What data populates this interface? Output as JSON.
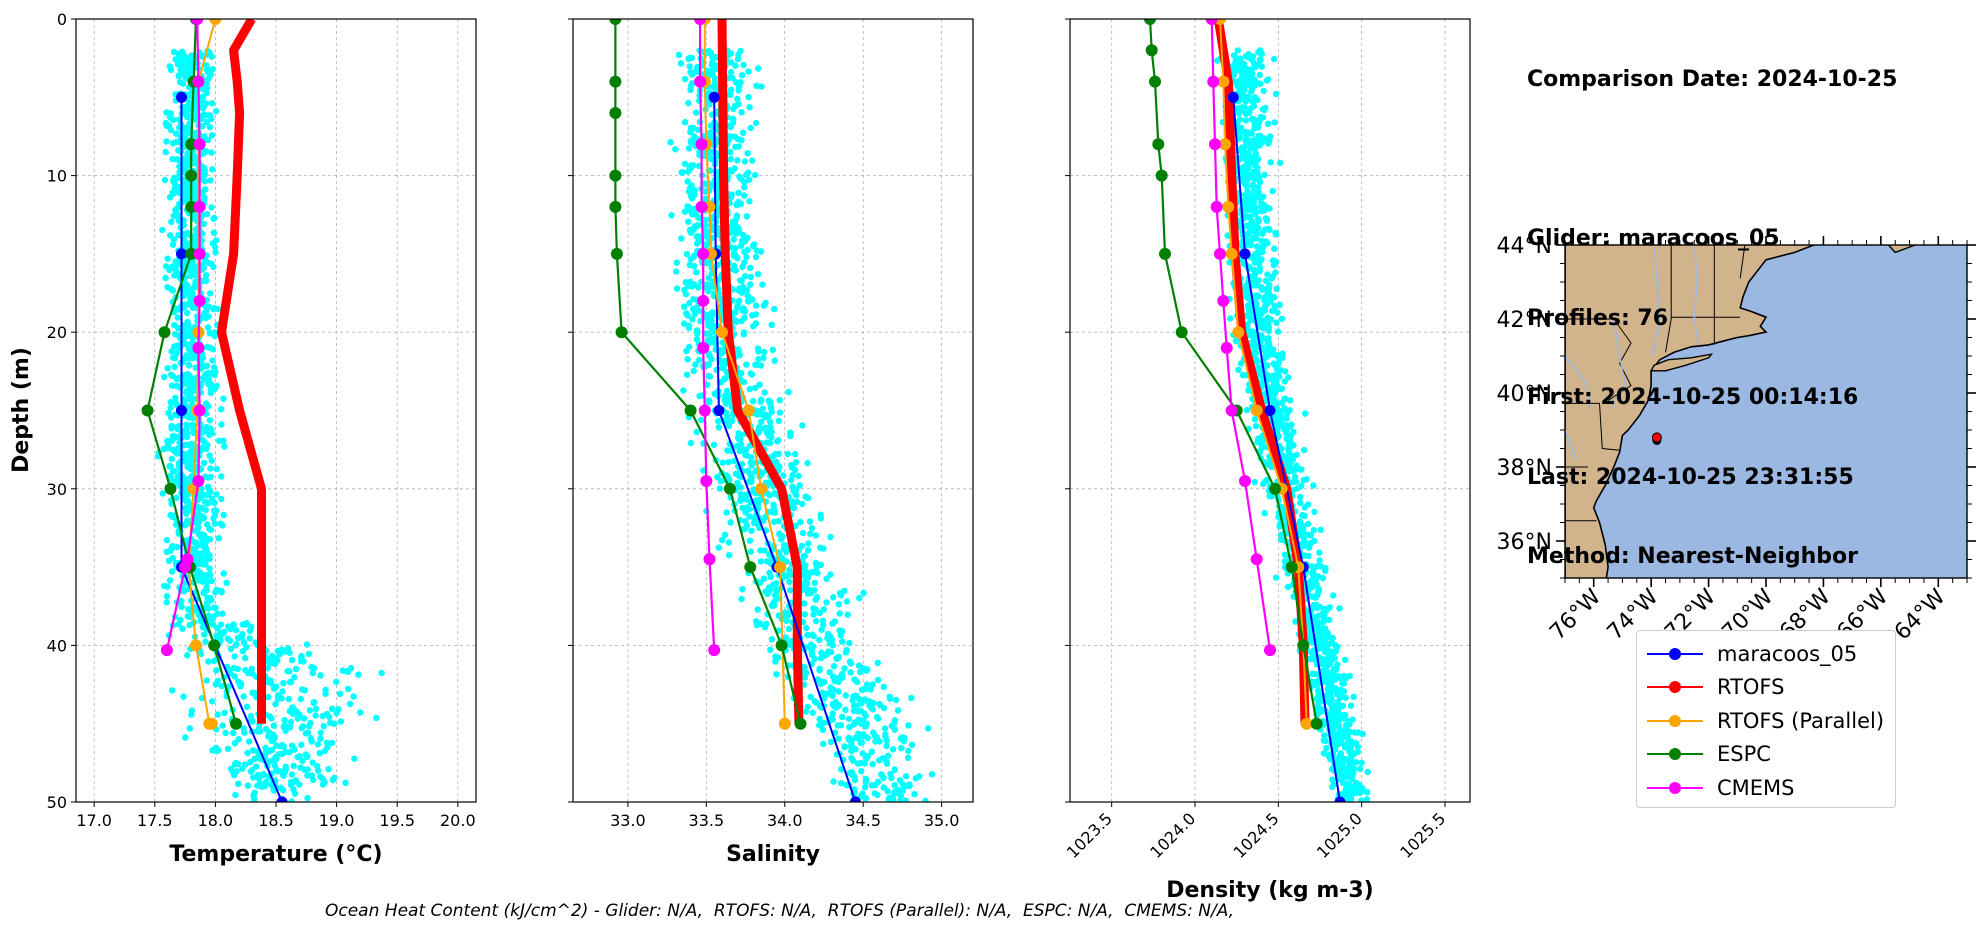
{
  "info": {
    "comparison_date": "Comparison Date: 2024-10-25",
    "glider": "Glider: maracoos_05",
    "profiles": "Profiles: 76",
    "first": "First: 2024-10-25 00:14:16",
    "last": "Last: 2024-10-25 23:31:55",
    "method": "Method: Nearest-Neighbor"
  },
  "footer": {
    "ohc_text": "Ocean Heat Content (kJ/cm^2) - Glider: N/A,  RTOFS: N/A,  RTOFS (Parallel): N/A,  ESPC: N/A,  CMEMS: N/A,"
  },
  "colors": {
    "glider": "#0000ff",
    "rtofs": "#ff0000",
    "rtofs_parallel": "#ffa500",
    "espc": "#008000",
    "cmems": "#ff00ff",
    "scatter": "#00ffff",
    "land": "#d2b48c",
    "ocean": "#9bb8e2"
  },
  "legend": [
    {
      "name": "maracoos_05",
      "color": "#0000ff"
    },
    {
      "name": "RTOFS",
      "color": "#ff0000"
    },
    {
      "name": "RTOFS (Parallel)",
      "color": "#ffa500"
    },
    {
      "name": "ESPC",
      "color": "#008000"
    },
    {
      "name": "CMEMS",
      "color": "#ff00ff"
    }
  ],
  "chart_data": [
    {
      "type": "line",
      "xlabel": "Temperature (°C)",
      "ylabel": "Depth (m)",
      "xlim": [
        16.85,
        20.15
      ],
      "ylim": [
        50,
        0
      ],
      "xticks": [
        "17.0",
        "17.5",
        "18.0",
        "18.5",
        "19.0",
        "19.5",
        "20.0"
      ],
      "yticks": [
        "0",
        "10",
        "20",
        "30",
        "40",
        "50"
      ],
      "grid": true,
      "series": [
        {
          "name": "maracoos_05",
          "x": [
            17.72,
            17.72,
            17.72,
            17.72,
            18.55
          ],
          "y": [
            5,
            15,
            25,
            35,
            50
          ]
        },
        {
          "name": "RTOFS",
          "x": [
            18.3,
            18.15,
            18.18,
            18.2,
            18.18,
            18.15,
            18.05,
            18.2,
            18.38,
            18.38,
            18.38
          ],
          "y": [
            0,
            2,
            4,
            6,
            10,
            15,
            20,
            25,
            30,
            35,
            45
          ]
        },
        {
          "name": "RTOFS (Parallel)",
          "x": [
            18.0,
            17.86,
            17.86,
            17.86,
            17.86,
            17.86,
            17.85,
            17.82,
            17.78,
            17.84,
            17.95,
            17.97
          ],
          "y": [
            0,
            4,
            8,
            12,
            15,
            20,
            25,
            30,
            35,
            40,
            45,
            45
          ]
        },
        {
          "name": "ESPC",
          "x": [
            17.84,
            17.82,
            17.8,
            17.8,
            17.8,
            17.8,
            17.58,
            17.44,
            17.63,
            17.79,
            17.99,
            18.17
          ],
          "y": [
            0,
            4,
            8,
            10,
            12,
            15,
            20,
            25,
            30,
            35,
            40,
            45
          ]
        },
        {
          "name": "CMEMS",
          "x": [
            17.85,
            17.86,
            17.87,
            17.87,
            17.87,
            17.87,
            17.86,
            17.87,
            17.86,
            17.77,
            17.75,
            17.6
          ],
          "y": [
            0,
            4,
            8,
            12,
            15,
            18,
            21,
            25,
            29.5,
            34.5,
            35,
            40.3
          ]
        }
      ]
    },
    {
      "type": "line",
      "xlabel": "Salinity",
      "xlim": [
        32.65,
        35.2
      ],
      "ylim": [
        50,
        0
      ],
      "xticks": [
        "33.0",
        "33.5",
        "34.0",
        "34.5",
        "35.0"
      ],
      "grid": true,
      "series": [
        {
          "name": "maracoos_05",
          "x": [
            33.55,
            33.56,
            33.58,
            33.95,
            34.45
          ],
          "y": [
            5,
            15,
            25,
            35,
            50
          ]
        },
        {
          "name": "RTOFS",
          "x": [
            33.6,
            33.61,
            33.62,
            33.64,
            33.7,
            33.98,
            34.08,
            34.08,
            34.09
          ],
          "y": [
            0,
            10,
            15,
            20,
            25,
            30,
            35,
            40,
            45
          ]
        },
        {
          "name": "RTOFS (Parallel)",
          "x": [
            33.49,
            33.49,
            33.5,
            33.52,
            33.53,
            33.6,
            33.77,
            33.85,
            33.97,
            34.0
          ],
          "y": [
            0,
            4,
            8,
            12,
            15,
            20,
            25,
            30,
            35,
            45
          ]
        },
        {
          "name": "ESPC",
          "x": [
            32.92,
            32.92,
            32.92,
            32.92,
            32.92,
            32.93,
            32.96,
            33.4,
            33.65,
            33.78,
            33.98,
            34.1
          ],
          "y": [
            0,
            4,
            6,
            10,
            12,
            15,
            20,
            25,
            30,
            35,
            40,
            45
          ]
        },
        {
          "name": "CMEMS",
          "x": [
            33.46,
            33.46,
            33.47,
            33.47,
            33.48,
            33.48,
            33.48,
            33.49,
            33.5,
            33.52,
            33.55
          ],
          "y": [
            0,
            4,
            8,
            12,
            15,
            18,
            21,
            25,
            29.5,
            34.5,
            40.3
          ]
        }
      ]
    },
    {
      "type": "line",
      "xlabel": "Density (kg m-3)",
      "xlim": [
        1023.25,
        1025.65
      ],
      "ylim": [
        50,
        0
      ],
      "xticks": [
        "1023.5",
        "1024.0",
        "1024.5",
        "1025.0",
        "1025.5"
      ],
      "grid": true,
      "series": [
        {
          "name": "maracoos_05",
          "x": [
            1024.23,
            1024.3,
            1024.45,
            1024.65,
            1024.87
          ],
          "y": [
            5,
            15,
            25,
            35,
            50
          ]
        },
        {
          "name": "RTOFS",
          "x": [
            1024.14,
            1024.2,
            1024.22,
            1024.24,
            1024.28,
            1024.4,
            1024.55,
            1024.62,
            1024.65,
            1024.66
          ],
          "y": [
            0,
            4,
            10,
            15,
            20,
            25,
            30,
            35,
            40,
            45
          ]
        },
        {
          "name": "RTOFS (Parallel)",
          "x": [
            1024.15,
            1024.17,
            1024.18,
            1024.2,
            1024.22,
            1024.26,
            1024.37,
            1024.52,
            1024.62,
            1024.65,
            1024.67
          ],
          "y": [
            0,
            4,
            8,
            12,
            15,
            20,
            25,
            30,
            35,
            40,
            45
          ]
        },
        {
          "name": "ESPC",
          "x": [
            1023.73,
            1023.74,
            1023.76,
            1023.78,
            1023.8,
            1023.82,
            1023.92,
            1024.25,
            1024.48,
            1024.58,
            1024.65,
            1024.73
          ],
          "y": [
            0,
            2,
            4,
            8,
            10,
            15,
            20,
            25,
            30,
            35,
            40,
            45
          ]
        },
        {
          "name": "CMEMS",
          "x": [
            1024.1,
            1024.11,
            1024.12,
            1024.13,
            1024.15,
            1024.17,
            1024.19,
            1024.22,
            1024.3,
            1024.37,
            1024.45
          ],
          "y": [
            0,
            4,
            8,
            12,
            15,
            18,
            21,
            25,
            29.5,
            34.5,
            40.3
          ]
        }
      ]
    },
    {
      "type": "map",
      "lon_ticks": [
        "76°W",
        "74°W",
        "72°W",
        "70°W",
        "68°W",
        "66°W",
        "64°W"
      ],
      "lat_ticks": [
        "44°N",
        "42°N",
        "40°N",
        "38°N",
        "36°N"
      ],
      "lon_range": [
        -77,
        -63
      ],
      "lat_range": [
        35,
        44
      ],
      "marker": {
        "lon": -73.8,
        "lat": 38.8
      }
    }
  ]
}
